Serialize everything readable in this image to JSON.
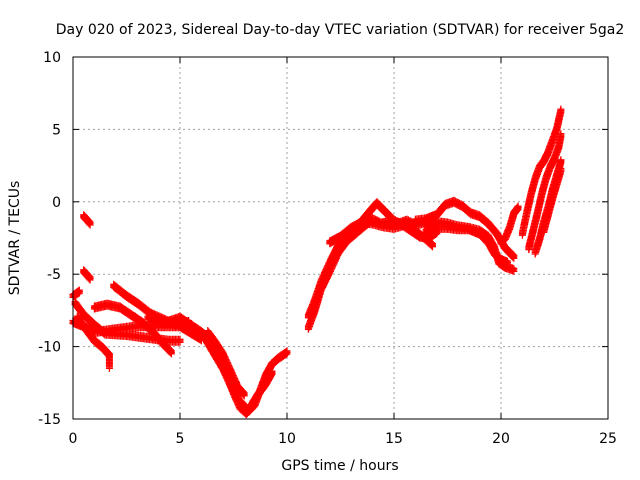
{
  "chart_data": {
    "type": "scatter",
    "title": "Day 020 of 2023, Sidereal Day-to-day VTEC variation (SDTVAR) for receiver 5ga2",
    "xlabel": "GPS time / hours",
    "ylabel": "SDTVAR / TECUs",
    "xlim": [
      0,
      25
    ],
    "ylim": [
      -15,
      10
    ],
    "xticks": [
      0,
      5,
      10,
      15,
      20,
      25
    ],
    "yticks": [
      -15,
      -10,
      -5,
      0,
      5,
      10
    ],
    "xtick_labels": [
      "0",
      "5",
      "10",
      "15",
      "20",
      "25"
    ],
    "ytick_labels": [
      "-15",
      "-10",
      "-5",
      "0",
      "5",
      "10"
    ],
    "grid": true,
    "marker": "plus",
    "color": "#ff0000",
    "series": [
      {
        "segments": [
          [
            [
              0.0,
              -6.5
            ],
            [
              0.3,
              -6.2
            ]
          ],
          [
            [
              0.5,
              -1.0
            ],
            [
              0.8,
              -1.5
            ]
          ],
          [
            [
              0.5,
              -4.8
            ],
            [
              0.8,
              -5.3
            ]
          ],
          [
            [
              0.0,
              -8.3
            ],
            [
              0.5,
              -8.6
            ],
            [
              1.0,
              -9.0
            ],
            [
              2.0,
              -8.8
            ],
            [
              3.0,
              -8.6
            ],
            [
              4.0,
              -8.6
            ],
            [
              5.0,
              -8.6
            ],
            [
              6.0,
              -9.5
            ]
          ],
          [
            [
              0.1,
              -7.0
            ],
            [
              0.5,
              -7.8
            ],
            [
              1.0,
              -8.5
            ],
            [
              1.5,
              -9.1
            ],
            [
              2.5,
              -9.2
            ],
            [
              3.5,
              -9.4
            ],
            [
              4.5,
              -9.6
            ],
            [
              5.0,
              -9.6
            ]
          ],
          [
            [
              0.2,
              -8.0
            ],
            [
              0.6,
              -8.8
            ],
            [
              1.0,
              -9.6
            ],
            [
              1.4,
              -10.1
            ],
            [
              1.7,
              -10.6
            ],
            [
              1.7,
              -11.4
            ]
          ],
          [
            [
              1.0,
              -7.3
            ],
            [
              1.6,
              -7.1
            ],
            [
              2.2,
              -7.3
            ],
            [
              2.8,
              -7.9
            ],
            [
              3.3,
              -8.4
            ],
            [
              3.8,
              -9.1
            ],
            [
              4.2,
              -9.8
            ],
            [
              4.6,
              -10.4
            ]
          ],
          [
            [
              1.9,
              -5.8
            ],
            [
              2.5,
              -6.5
            ],
            [
              3.1,
              -7.1
            ],
            [
              3.6,
              -7.7
            ],
            [
              4.2,
              -8.1
            ],
            [
              4.8,
              -8.5
            ],
            [
              5.4,
              -8.3
            ]
          ],
          [
            [
              3.5,
              -8.0
            ],
            [
              4.2,
              -8.4
            ],
            [
              5.0,
              -8.0
            ],
            [
              5.6,
              -8.6
            ],
            [
              6.0,
              -9.0
            ],
            [
              6.4,
              -9.5
            ],
            [
              6.8,
              -10.5
            ],
            [
              7.2,
              -12.0
            ],
            [
              7.5,
              -13.2
            ],
            [
              7.8,
              -14.2
            ],
            [
              8.1,
              -14.6
            ],
            [
              8.5,
              -14.0
            ],
            [
              8.7,
              -13.2
            ],
            [
              9.0,
              -12.0
            ],
            [
              9.3,
              -11.2
            ],
            [
              9.6,
              -10.8
            ],
            [
              10.0,
              -10.4
            ]
          ],
          [
            [
              5.8,
              -8.8
            ],
            [
              6.2,
              -9.5
            ],
            [
              6.6,
              -10.5
            ],
            [
              7.0,
              -11.5
            ],
            [
              7.4,
              -12.8
            ],
            [
              7.8,
              -13.8
            ],
            [
              8.2,
              -14.4
            ],
            [
              8.6,
              -13.4
            ],
            [
              9.0,
              -12.6
            ],
            [
              9.3,
              -11.8
            ]
          ],
          [
            [
              6.3,
              -9.0
            ],
            [
              6.6,
              -9.6
            ],
            [
              7.0,
              -10.5
            ],
            [
              7.4,
              -11.8
            ],
            [
              7.7,
              -12.8
            ],
            [
              8.0,
              -13.3
            ]
          ],
          [
            [
              11.0,
              -8.7
            ],
            [
              11.3,
              -7.5
            ],
            [
              11.6,
              -6.0
            ],
            [
              12.0,
              -4.8
            ],
            [
              12.4,
              -3.5
            ],
            [
              12.8,
              -2.7
            ],
            [
              13.2,
              -2.2
            ],
            [
              13.6,
              -1.7
            ],
            [
              14.0,
              -1.2
            ],
            [
              14.4,
              -1.5
            ],
            [
              14.8,
              -1.4
            ],
            [
              15.2,
              -1.5
            ],
            [
              15.6,
              -1.3
            ],
            [
              16.0,
              -1.6
            ],
            [
              16.5,
              -1.4
            ],
            [
              17.0,
              -1.5
            ]
          ],
          [
            [
              11.0,
              -7.9
            ],
            [
              11.3,
              -6.8
            ],
            [
              11.6,
              -5.5
            ],
            [
              12.0,
              -4.2
            ],
            [
              12.4,
              -3.0
            ],
            [
              12.8,
              -2.2
            ],
            [
              13.4,
              -1.5
            ],
            [
              13.9,
              -0.6
            ],
            [
              14.2,
              -0.1
            ],
            [
              14.6,
              -0.7
            ],
            [
              15.0,
              -1.3
            ],
            [
              15.4,
              -1.6
            ],
            [
              15.8,
              -2.0
            ],
            [
              16.2,
              -2.4
            ],
            [
              16.6,
              -2.5
            ],
            [
              17.0,
              -2.1
            ]
          ],
          [
            [
              12.0,
              -2.8
            ],
            [
              12.5,
              -2.4
            ],
            [
              13.0,
              -1.8
            ],
            [
              13.5,
              -1.4
            ],
            [
              14.0,
              -1.5
            ],
            [
              14.5,
              -1.7
            ],
            [
              15.0,
              -1.8
            ],
            [
              15.5,
              -1.6
            ],
            [
              16.0,
              -2.0
            ],
            [
              16.5,
              -2.6
            ],
            [
              16.8,
              -3.0
            ]
          ],
          [
            [
              16.0,
              -1.3
            ],
            [
              16.5,
              -1.2
            ],
            [
              17.0,
              -0.9
            ],
            [
              17.4,
              -0.2
            ],
            [
              17.8,
              0.0
            ],
            [
              18.2,
              -0.3
            ],
            [
              18.6,
              -0.8
            ],
            [
              19.0,
              -1.0
            ],
            [
              19.4,
              -1.5
            ],
            [
              19.8,
              -2.2
            ],
            [
              20.2,
              -3.2
            ],
            [
              20.6,
              -3.8
            ]
          ],
          [
            [
              16.5,
              -2.0
            ],
            [
              17.0,
              -1.4
            ],
            [
              17.5,
              -1.5
            ],
            [
              18.0,
              -1.7
            ],
            [
              18.5,
              -1.8
            ],
            [
              19.0,
              -2.0
            ],
            [
              19.4,
              -2.4
            ],
            [
              19.7,
              -3.2
            ],
            [
              19.9,
              -4.2
            ],
            [
              20.2,
              -4.5
            ],
            [
              20.6,
              -4.7
            ]
          ],
          [
            [
              16.5,
              -1.6
            ],
            [
              17.0,
              -1.8
            ],
            [
              17.5,
              -1.8
            ],
            [
              18.0,
              -1.9
            ],
            [
              18.5,
              -1.9
            ],
            [
              19.0,
              -2.2
            ],
            [
              19.4,
              -2.8
            ],
            [
              19.7,
              -3.6
            ],
            [
              20.0,
              -4.0
            ],
            [
              20.3,
              -4.2
            ]
          ],
          [
            [
              20.0,
              -2.8
            ],
            [
              20.2,
              -2.5
            ],
            [
              20.4,
              -1.8
            ],
            [
              20.6,
              -0.8
            ],
            [
              20.8,
              -0.4
            ]
          ],
          [
            [
              21.0,
              -2.2
            ],
            [
              21.2,
              -0.8
            ],
            [
              21.4,
              0.5
            ],
            [
              21.6,
              1.6
            ],
            [
              21.8,
              2.4
            ],
            [
              22.0,
              2.8
            ],
            [
              22.2,
              3.4
            ],
            [
              22.4,
              4.2
            ],
            [
              22.6,
              5.0
            ],
            [
              22.8,
              6.3
            ]
          ],
          [
            [
              21.3,
              -3.2
            ],
            [
              21.5,
              -2.0
            ],
            [
              21.7,
              -0.8
            ],
            [
              21.9,
              0.5
            ],
            [
              22.1,
              1.6
            ],
            [
              22.3,
              2.4
            ],
            [
              22.5,
              3.0
            ],
            [
              22.7,
              3.8
            ],
            [
              22.8,
              4.6
            ]
          ],
          [
            [
              21.6,
              -3.5
            ],
            [
              21.8,
              -2.6
            ],
            [
              22.0,
              -1.4
            ],
            [
              22.2,
              -0.4
            ],
            [
              22.4,
              0.8
            ],
            [
              22.6,
              1.8
            ],
            [
              22.8,
              2.8
            ]
          ],
          [
            [
              22.0,
              -2.0
            ],
            [
              22.2,
              -0.9
            ],
            [
              22.4,
              0.2
            ],
            [
              22.6,
              1.2
            ],
            [
              22.8,
              2.2
            ]
          ]
        ]
      }
    ]
  }
}
